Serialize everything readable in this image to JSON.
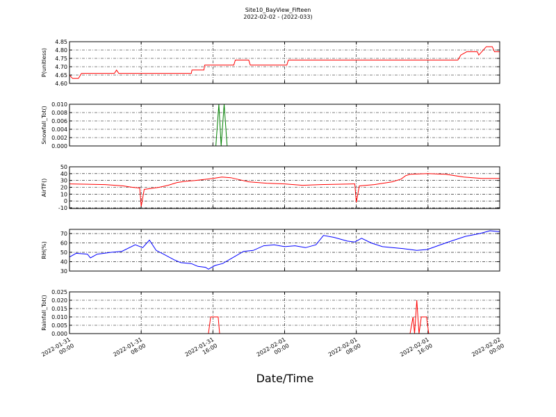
{
  "chart_data": [
    {
      "type": "line",
      "title": "Site10_BayView_Fifteen",
      "subtitle": "2022-02-02 - (2022-033)",
      "ylabel": "P(unitless)",
      "color": "#ff0000",
      "grid": true,
      "xlim": [
        "2022-01-31 00:00",
        "2022-02-02 00:00"
      ],
      "xticks": [
        "2022-01-31 00:00",
        "2022-01-31 08:00",
        "2022-01-31 16:00",
        "2022-02-01 00:00",
        "2022-02-01 08:00",
        "2022-02-01 16:00",
        "2022-02-02 00:00"
      ],
      "ylim": [
        4.6,
        4.85
      ],
      "yticks": [
        {
          "value": 4.6,
          "label": "4.60"
        },
        {
          "value": 4.65,
          "label": "4.65"
        },
        {
          "value": 4.7,
          "label": "4.70"
        },
        {
          "value": 4.75,
          "label": "4.75"
        },
        {
          "value": 4.8,
          "label": "4.80"
        },
        {
          "value": 4.85,
          "label": "4.85"
        }
      ],
      "x": [
        "2022-01-31 00:00",
        "2022-01-31 00:20",
        "2022-01-31 01:00",
        "2022-01-31 01:20",
        "2022-01-31 05:00",
        "2022-01-31 05:15",
        "2022-01-31 05:30",
        "2022-01-31 13:35",
        "2022-01-31 13:40",
        "2022-01-31 15:00",
        "2022-01-31 15:05",
        "2022-01-31 18:20",
        "2022-01-31 18:30",
        "2022-01-31 20:00",
        "2022-01-31 20:10",
        "2022-02-01 00:15",
        "2022-02-01 00:25",
        "2022-02-01 19:20",
        "2022-02-01 19:40",
        "2022-02-01 20:20",
        "2022-02-01 21:30",
        "2022-02-01 21:40",
        "2022-02-01 22:00",
        "2022-02-01 22:30",
        "2022-02-01 23:10",
        "2022-02-01 23:25",
        "2022-02-02 00:00"
      ],
      "values": [
        4.65,
        4.63,
        4.63,
        4.66,
        4.66,
        4.68,
        4.66,
        4.66,
        4.68,
        4.68,
        4.71,
        4.71,
        4.74,
        4.74,
        4.71,
        4.71,
        4.74,
        4.74,
        4.77,
        4.79,
        4.79,
        4.77,
        4.79,
        4.82,
        4.82,
        4.79,
        4.79
      ]
    },
    {
      "type": "line",
      "ylabel": "Snowfall_Tot()",
      "color": "#007f00",
      "grid": true,
      "xlim": [
        "2022-01-31 00:00",
        "2022-02-02 00:00"
      ],
      "xticks": [
        "2022-01-31 00:00",
        "2022-01-31 08:00",
        "2022-01-31 16:00",
        "2022-02-01 00:00",
        "2022-02-01 08:00",
        "2022-02-01 16:00",
        "2022-02-02 00:00"
      ],
      "ylim": [
        0,
        0.01
      ],
      "yticks": [
        {
          "value": 0,
          "label": "0.000"
        },
        {
          "value": 0.002,
          "label": "0.002"
        },
        {
          "value": 0.004,
          "label": "0.004"
        },
        {
          "value": 0.006,
          "label": "0.006"
        },
        {
          "value": 0.008,
          "label": "0.008"
        },
        {
          "value": 0.01,
          "label": "0.010"
        }
      ],
      "x": [
        "2022-01-31 00:00",
        "2022-01-31 16:20",
        "2022-01-31 16:40",
        "2022-01-31 16:55",
        "2022-01-31 17:15",
        "2022-01-31 17:35",
        "2022-02-02 00:00"
      ],
      "values": [
        0,
        0,
        0.01,
        0,
        0.01,
        0,
        0
      ]
    },
    {
      "type": "line",
      "ylabel": "AirTF()",
      "color": "#ff0000",
      "grid": true,
      "xlim": [
        "2022-01-31 00:00",
        "2022-02-02 00:00"
      ],
      "xticks": [
        "2022-01-31 00:00",
        "2022-01-31 08:00",
        "2022-01-31 16:00",
        "2022-02-01 00:00",
        "2022-02-01 08:00",
        "2022-02-01 16:00",
        "2022-02-02 00:00"
      ],
      "ylim": [
        -11,
        50
      ],
      "yticks": [
        -10,
        0,
        10,
        20,
        30,
        40,
        50
      ],
      "x": [
        "2022-01-31 00:00",
        "2022-01-31 04:00",
        "2022-01-31 06:00",
        "2022-01-31 07:00",
        "2022-01-31 07:50",
        "2022-01-31 08:00",
        "2022-01-31 08:20",
        "2022-01-31 10:00",
        "2022-01-31 11:00",
        "2022-01-31 12:00",
        "2022-01-31 13:00",
        "2022-01-31 14:00",
        "2022-01-31 16:00",
        "2022-01-31 17:00",
        "2022-01-31 18:00",
        "2022-01-31 19:00",
        "2022-01-31 20:00",
        "2022-01-31 22:00",
        "2022-02-01 00:00",
        "2022-02-01 02:00",
        "2022-02-01 04:00",
        "2022-02-01 07:50",
        "2022-02-01 08:00",
        "2022-02-01 08:20",
        "2022-02-01 10:00",
        "2022-02-01 12:00",
        "2022-02-01 13:00",
        "2022-02-01 13:30",
        "2022-02-01 14:00",
        "2022-02-01 16:00",
        "2022-02-01 18:00",
        "2022-02-01 20:00",
        "2022-02-01 22:00",
        "2022-02-02 00:00"
      ],
      "values": [
        25,
        24,
        22,
        20,
        19,
        -8,
        17,
        20,
        23,
        27,
        29,
        30,
        33,
        35,
        34,
        31,
        28,
        26,
        25,
        23,
        24,
        25,
        -2,
        22,
        24,
        28,
        32,
        37,
        39,
        40,
        39,
        35,
        33,
        33
      ]
    },
    {
      "type": "line",
      "ylabel": "RH(%)",
      "color": "#0000ff",
      "grid": true,
      "xlim": [
        "2022-01-31 00:00",
        "2022-02-02 00:00"
      ],
      "xticks": [
        "2022-01-31 00:00",
        "2022-01-31 08:00",
        "2022-01-31 16:00",
        "2022-02-01 00:00",
        "2022-02-01 08:00",
        "2022-02-01 16:00",
        "2022-02-02 00:00"
      ],
      "ylim": [
        30,
        74.5
      ],
      "yticks": [
        30,
        40,
        50,
        60,
        70
      ],
      "x": [
        "2022-01-31 00:00",
        "2022-01-31 00:45",
        "2022-01-31 02:00",
        "2022-01-31 02:20",
        "2022-01-31 03:05",
        "2022-01-31 04:40",
        "2022-01-31 05:50",
        "2022-01-31 07:20",
        "2022-01-31 08:10",
        "2022-01-31 08:55",
        "2022-01-31 09:40",
        "2022-01-31 10:30",
        "2022-01-31 11:40",
        "2022-01-31 12:25",
        "2022-01-31 13:35",
        "2022-01-31 14:20",
        "2022-01-31 15:10",
        "2022-01-31 15:30",
        "2022-01-31 16:15",
        "2022-01-31 17:05",
        "2022-01-31 18:10",
        "2022-01-31 19:25",
        "2022-01-31 20:30",
        "2022-01-31 21:40",
        "2022-01-31 22:50",
        "2022-02-01 00:00",
        "2022-02-01 01:10",
        "2022-02-01 02:20",
        "2022-02-01 03:30",
        "2022-02-01 04:20",
        "2022-02-01 05:30",
        "2022-02-01 07:00",
        "2022-02-01 07:50",
        "2022-02-01 08:35",
        "2022-02-01 09:40",
        "2022-02-01 10:55",
        "2022-02-01 12:00",
        "2022-02-01 13:10",
        "2022-02-01 14:45",
        "2022-02-01 15:55",
        "2022-02-01 17:05",
        "2022-02-01 18:35",
        "2022-02-01 20:10",
        "2022-02-01 21:45",
        "2022-02-01 22:55",
        "2022-02-02 00:00"
      ],
      "values": [
        45,
        49,
        48,
        44,
        48,
        50,
        51,
        58,
        55,
        63,
        52,
        48,
        42,
        39,
        38,
        35,
        34,
        32,
        36,
        38,
        44,
        51,
        52,
        57,
        58,
        56,
        57,
        55,
        58,
        68,
        66,
        62,
        61,
        65,
        60,
        56,
        55,
        54,
        52,
        53,
        57,
        62,
        67,
        70,
        73,
        72
      ]
    },
    {
      "type": "line",
      "ylabel": "Rainfall_Tot()",
      "xlabel": "Date/Time",
      "color": "#ff0000",
      "grid": true,
      "xlim": [
        "2022-01-31 00:00",
        "2022-02-02 00:00"
      ],
      "xticks": [
        "2022-01-31 00:00",
        "2022-01-31 08:00",
        "2022-01-31 16:00",
        "2022-02-01 00:00",
        "2022-02-01 08:00",
        "2022-02-01 16:00",
        "2022-02-02 00:00"
      ],
      "ylim": [
        0,
        0.025
      ],
      "yticks": [
        {
          "value": 0,
          "label": "0.000"
        },
        {
          "value": 0.005,
          "label": "0.005"
        },
        {
          "value": 0.01,
          "label": "0.010"
        },
        {
          "value": 0.015,
          "label": "0.015"
        },
        {
          "value": 0.02,
          "label": "0.020"
        },
        {
          "value": 0.025,
          "label": "0.025"
        }
      ],
      "x": [
        "2022-01-31 00:00",
        "2022-01-31 15:30",
        "2022-01-31 15:45",
        "2022-01-31 16:35",
        "2022-01-31 16:45",
        "2022-02-01 14:00",
        "2022-02-01 14:20",
        "2022-02-01 14:30",
        "2022-02-01 14:45",
        "2022-02-01 15:00",
        "2022-02-01 15:15",
        "2022-02-01 15:50",
        "2022-02-01 16:05",
        "2022-02-02 00:00"
      ],
      "values": [
        0,
        0,
        0.01,
        0.01,
        0,
        0,
        0.01,
        0,
        0.02,
        0,
        0.01,
        0.01,
        0,
        0
      ]
    }
  ]
}
